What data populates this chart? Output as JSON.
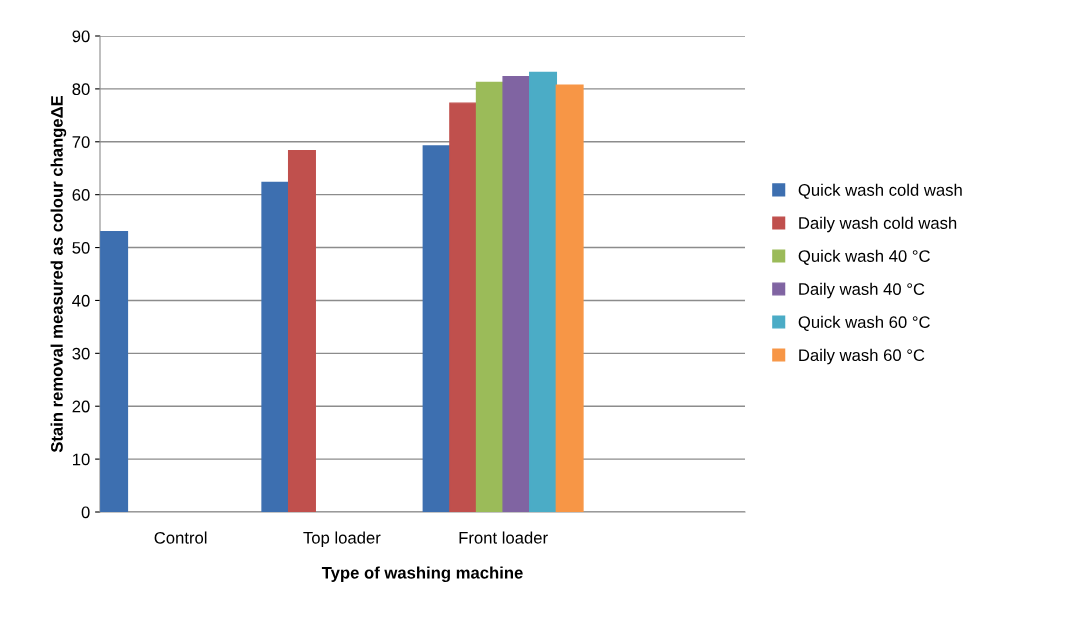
{
  "chart_data": {
    "type": "bar",
    "xlabel": "Type of washing machine",
    "ylabel": "Stain removal measured as colour changeΔE",
    "categories": [
      "Control",
      "Top loader",
      "Front loader",
      null
    ],
    "series": [
      {
        "name": "Quick wash cold wash",
        "color": "#3d6fb0",
        "values": [
          53,
          62.3,
          69.2,
          null
        ]
      },
      {
        "name": "Daily wash cold wash",
        "color": "#c0504d",
        "values": [
          null,
          68.3,
          77.3,
          null
        ]
      },
      {
        "name": "Quick wash 40 °C",
        "color": "#9bbb59",
        "values": [
          null,
          null,
          81.2,
          null
        ]
      },
      {
        "name": "Daily wash 40 °C",
        "color": "#8064a2",
        "values": [
          null,
          null,
          82.3,
          null
        ]
      },
      {
        "name": "Quick wash 60 °C",
        "color": "#4bacc6",
        "values": [
          null,
          null,
          83.1,
          null
        ]
      },
      {
        "name": "Daily wash 60 °C",
        "color": "#f79646",
        "values": [
          null,
          null,
          80.7,
          null
        ]
      }
    ],
    "ylim": [
      0,
      90
    ],
    "yticks": [
      0,
      10,
      20,
      30,
      40,
      50,
      60,
      70,
      80,
      90
    ],
    "grid": "y",
    "legend": "right"
  }
}
